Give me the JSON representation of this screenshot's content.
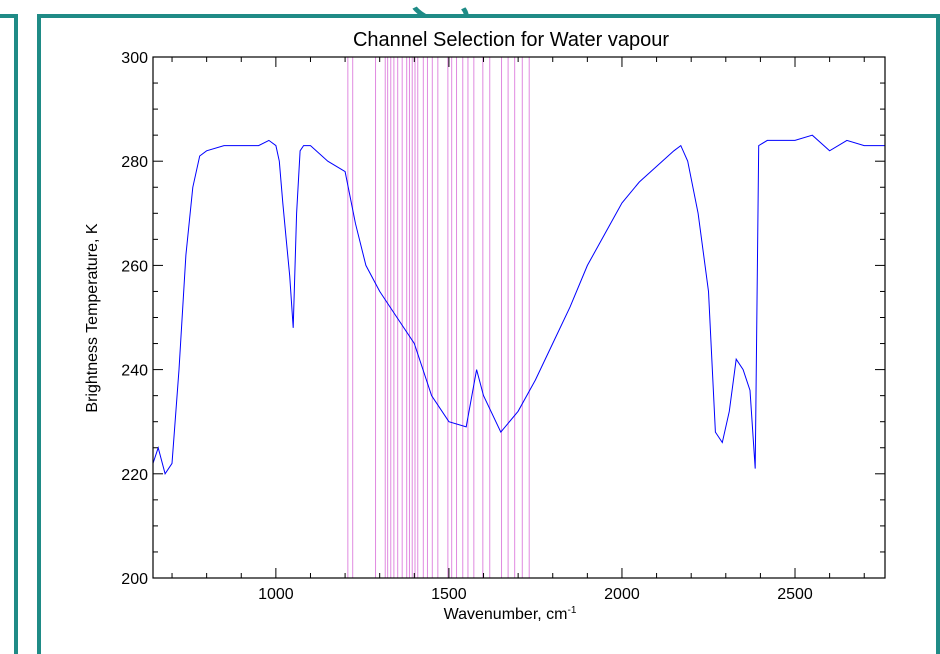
{
  "colors": {
    "frame": "#1f8b86",
    "series": "#0000ff",
    "channels": "#e08ae0"
  },
  "chart_data": {
    "type": "line",
    "title": "Channel Selection for Water vapour",
    "xlabel": "Wavenumber, cm",
    "xlabel_sup": "-1",
    "ylabel": "Brightness Temperature, K",
    "xlim": [
      645,
      2760
    ],
    "ylim": [
      200,
      300
    ],
    "x_ticks": [
      1000,
      1500,
      2000,
      2500
    ],
    "x_tick_labels": [
      "1000",
      "1500",
      "2000",
      "2500"
    ],
    "y_ticks": [
      200,
      220,
      240,
      260,
      280,
      300
    ],
    "y_tick_labels": [
      "200",
      "220",
      "240",
      "260",
      "280",
      "300"
    ],
    "grid": false,
    "series": [
      {
        "x": [
          645,
          660,
          680,
          700,
          720,
          740,
          760,
          780,
          800,
          850,
          900,
          950,
          980,
          1000,
          1010,
          1020,
          1030,
          1040,
          1050,
          1060,
          1070,
          1080,
          1100,
          1150,
          1200,
          1230,
          1260,
          1300,
          1350,
          1400,
          1450,
          1500,
          1550,
          1580,
          1600,
          1650,
          1700,
          1750,
          1800,
          1850,
          1900,
          1950,
          2000,
          2050,
          2100,
          2150,
          2170,
          2190,
          2220,
          2250,
          2270,
          2290,
          2310,
          2330,
          2350,
          2370,
          2385,
          2395,
          2420,
          2450,
          2500,
          2550,
          2600,
          2650,
          2700,
          2760
        ],
        "y": [
          222,
          225,
          220,
          222,
          240,
          262,
          275,
          281,
          282,
          283,
          283,
          283,
          284,
          283,
          280,
          272,
          265,
          258,
          248,
          270,
          282,
          283,
          283,
          280,
          278,
          268,
          260,
          255,
          250,
          245,
          235,
          230,
          229,
          240,
          235,
          228,
          232,
          238,
          245,
          252,
          260,
          266,
          272,
          276,
          279,
          282,
          283,
          280,
          270,
          255,
          228,
          226,
          232,
          242,
          240,
          236,
          221,
          283,
          284,
          284,
          284,
          285,
          282,
          284,
          283,
          283
        ]
      }
    ],
    "channel_lines": [
      1208,
      1222,
      1288,
      1316,
      1323,
      1332,
      1341,
      1352,
      1365,
      1378,
      1386,
      1394,
      1402,
      1410,
      1426,
      1438,
      1452,
      1468,
      1497,
      1508,
      1522,
      1540,
      1555,
      1572,
      1598,
      1618,
      1652,
      1671,
      1690,
      1712,
      1732
    ]
  }
}
